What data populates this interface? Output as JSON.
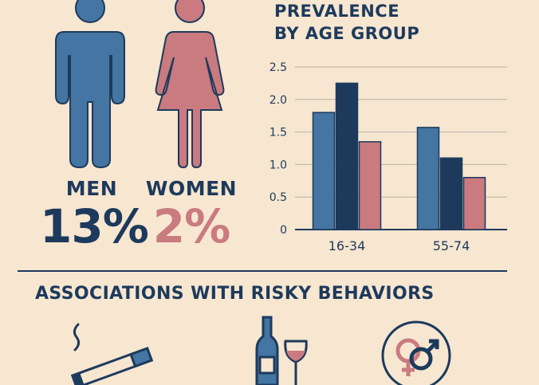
{
  "colors": {
    "background": "#f7e6d0",
    "navy": "#1d3a5c",
    "men_blue": "#4475a3",
    "women_pink": "#c97b80",
    "dark_navy": "#1d3a5c"
  },
  "men": {
    "label": "MEN",
    "percent": "13%",
    "icon": "man-figure-icon"
  },
  "women": {
    "label": "WOMEN",
    "percent": "2%",
    "icon": "woman-figure-icon"
  },
  "chart": {
    "title_line1": "PREVALENCE",
    "title_line2": "BY AGE GROUP"
  },
  "chart_data": {
    "type": "bar",
    "categories": [
      "16-34",
      "55-74"
    ],
    "series": [
      {
        "values": [
          1.8,
          1.57
        ],
        "color": "#4475a3"
      },
      {
        "values": [
          2.25,
          1.1
        ],
        "color": "#1d3a5c"
      },
      {
        "values": [
          1.35,
          0.8
        ],
        "color": "#c97b80"
      }
    ],
    "yticks": [
      "0",
      "0.5",
      "1.0",
      "1.5",
      "2.0",
      "2.5"
    ],
    "ytick_values": [
      0,
      0.5,
      1.0,
      1.5,
      2.0,
      2.5
    ],
    "ylim": [
      0,
      2.5
    ],
    "grid": true,
    "title": "PREVALENCE BY AGE GROUP",
    "xlabel": "",
    "ylabel": ""
  },
  "associations": {
    "title": "ASSOCIATIONS WITH RISKY BEHAVIORS",
    "items": [
      {
        "icon": "cigarette-icon"
      },
      {
        "icon": "wine-bottle-glass-icon"
      },
      {
        "icon": "gender-symbols-icon"
      }
    ]
  }
}
